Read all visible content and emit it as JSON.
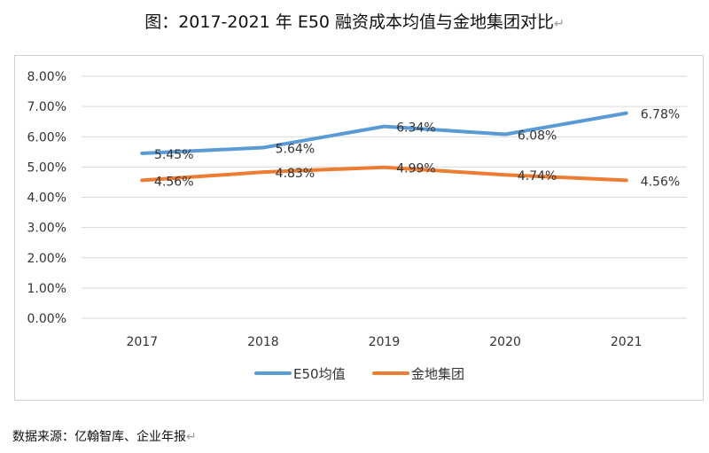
{
  "title": "图：2017-2021 年  E50 融资成本均值与金地集团对比",
  "title_mark": "↵",
  "source": "数据来源：亿翰智库、企业年报",
  "source_mark": "↵",
  "chart_data": {
    "type": "line",
    "categories": [
      "2017",
      "2018",
      "2019",
      "2020",
      "2021"
    ],
    "series": [
      {
        "name": "E50均值",
        "color": "#5B9BD5",
        "values": [
          5.45,
          5.64,
          6.34,
          6.08,
          6.78
        ],
        "labels": [
          "5.45%",
          "5.64%",
          "6.34%",
          "6.08%",
          "6.78%"
        ]
      },
      {
        "name": "金地集团",
        "color": "#ED7D31",
        "values": [
          4.56,
          4.83,
          4.99,
          4.74,
          4.56
        ],
        "labels": [
          "4.56%",
          "4.83%",
          "4.99%",
          "4.74%",
          "4.56%"
        ]
      }
    ],
    "ylim": [
      0,
      8
    ],
    "yticks": [
      "0.00%",
      "1.00%",
      "2.00%",
      "3.00%",
      "4.00%",
      "5.00%",
      "6.00%",
      "7.00%",
      "8.00%"
    ],
    "grid": true,
    "legend": "bottom"
  }
}
